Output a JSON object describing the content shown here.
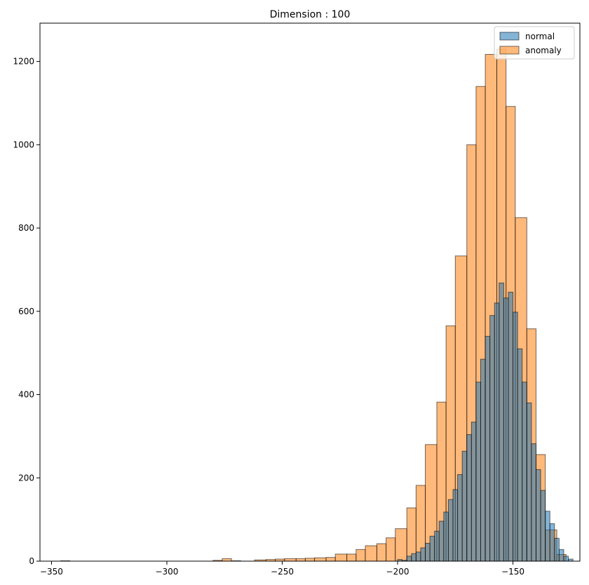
{
  "chart_data": {
    "type": "histogram",
    "title": "Dimension : 100",
    "xlabel": "",
    "ylabel": "",
    "xlim": [
      -355,
      -121
    ],
    "ylim": [
      0,
      1292
    ],
    "xticks": [
      -350,
      -300,
      -250,
      -200,
      -150
    ],
    "yticks": [
      0,
      200,
      400,
      600,
      800,
      1000,
      1200
    ],
    "grid": false,
    "legend": {
      "placement": "top-right"
    },
    "series": [
      {
        "name": "anomaly",
        "color": "#ff7f0e",
        "alpha": 0.55,
        "edge_color": "#000000",
        "bins": [
          {
            "x0": -346,
            "x1": -342,
            "count": 1
          },
          {
            "x0": -280,
            "x1": -276,
            "count": 2
          },
          {
            "x0": -276,
            "x1": -272,
            "count": 6
          },
          {
            "x0": -272,
            "x1": -268,
            "count": 1
          },
          {
            "x0": -262,
            "x1": -257,
            "count": 3
          },
          {
            "x0": -257,
            "x1": -253,
            "count": 4
          },
          {
            "x0": -253,
            "x1": -249,
            "count": 5
          },
          {
            "x0": -249,
            "x1": -244,
            "count": 6
          },
          {
            "x0": -244,
            "x1": -240,
            "count": 6
          },
          {
            "x0": -240,
            "x1": -236,
            "count": 7
          },
          {
            "x0": -236,
            "x1": -231,
            "count": 8
          },
          {
            "x0": -231,
            "x1": -227,
            "count": 9
          },
          {
            "x0": -227,
            "x1": -222,
            "count": 17
          },
          {
            "x0": -222,
            "x1": -218,
            "count": 17
          },
          {
            "x0": -218,
            "x1": -214,
            "count": 28
          },
          {
            "x0": -214,
            "x1": -209,
            "count": 37
          },
          {
            "x0": -209,
            "x1": -205,
            "count": 42
          },
          {
            "x0": -205,
            "x1": -201,
            "count": 56
          },
          {
            "x0": -201,
            "x1": -196,
            "count": 78
          },
          {
            "x0": -196,
            "x1": -192,
            "count": 128
          },
          {
            "x0": -192,
            "x1": -188,
            "count": 182
          },
          {
            "x0": -188,
            "x1": -183,
            "count": 280
          },
          {
            "x0": -183,
            "x1": -179,
            "count": 382
          },
          {
            "x0": -179,
            "x1": -175,
            "count": 565
          },
          {
            "x0": -175,
            "x1": -170,
            "count": 733
          },
          {
            "x0": -170,
            "x1": -166,
            "count": 1000
          },
          {
            "x0": -166,
            "x1": -162,
            "count": 1140
          },
          {
            "x0": -162,
            "x1": -157,
            "count": 1217
          },
          {
            "x0": -157,
            "x1": -153,
            "count": 1230
          },
          {
            "x0": -153,
            "x1": -149,
            "count": 1092
          },
          {
            "x0": -149,
            "x1": -144,
            "count": 825
          },
          {
            "x0": -144,
            "x1": -140,
            "count": 558
          },
          {
            "x0": -140,
            "x1": -136,
            "count": 256
          },
          {
            "x0": -136,
            "x1": -131,
            "count": 75
          },
          {
            "x0": -131,
            "x1": -127,
            "count": 16
          }
        ]
      },
      {
        "name": "normal",
        "color": "#1f77b4",
        "alpha": 0.55,
        "edge_color": "#000000",
        "bins": [
          {
            "x0": -200,
            "x1": -198,
            "count": 4
          },
          {
            "x0": -198,
            "x1": -196,
            "count": 2
          },
          {
            "x0": -196,
            "x1": -194,
            "count": 12
          },
          {
            "x0": -194,
            "x1": -192,
            "count": 18
          },
          {
            "x0": -192,
            "x1": -190,
            "count": 22
          },
          {
            "x0": -190,
            "x1": -188,
            "count": 32
          },
          {
            "x0": -188,
            "x1": -186,
            "count": 43
          },
          {
            "x0": -186,
            "x1": -184,
            "count": 60
          },
          {
            "x0": -184,
            "x1": -182,
            "count": 72
          },
          {
            "x0": -182,
            "x1": -180,
            "count": 96
          },
          {
            "x0": -180,
            "x1": -178,
            "count": 118
          },
          {
            "x0": -178,
            "x1": -176,
            "count": 148
          },
          {
            "x0": -176,
            "x1": -174,
            "count": 172
          },
          {
            "x0": -174,
            "x1": -172,
            "count": 208
          },
          {
            "x0": -172,
            "x1": -170,
            "count": 264
          },
          {
            "x0": -170,
            "x1": -168,
            "count": 304
          },
          {
            "x0": -168,
            "x1": -166,
            "count": 334
          },
          {
            "x0": -166,
            "x1": -164,
            "count": 430
          },
          {
            "x0": -164,
            "x1": -162,
            "count": 485
          },
          {
            "x0": -162,
            "x1": -160,
            "count": 540
          },
          {
            "x0": -160,
            "x1": -158,
            "count": 590
          },
          {
            "x0": -158,
            "x1": -156,
            "count": 620
          },
          {
            "x0": -156,
            "x1": -154,
            "count": 668
          },
          {
            "x0": -154,
            "x1": -152,
            "count": 632
          },
          {
            "x0": -152,
            "x1": -150,
            "count": 646
          },
          {
            "x0": -150,
            "x1": -148,
            "count": 598
          },
          {
            "x0": -148,
            "x1": -146,
            "count": 510
          },
          {
            "x0": -146,
            "x1": -144,
            "count": 430
          },
          {
            "x0": -144,
            "x1": -142,
            "count": 380
          },
          {
            "x0": -142,
            "x1": -140,
            "count": 282
          },
          {
            "x0": -140,
            "x1": -138,
            "count": 220
          },
          {
            "x0": -138,
            "x1": -136,
            "count": 170
          },
          {
            "x0": -136,
            "x1": -134,
            "count": 120
          },
          {
            "x0": -134,
            "x1": -132,
            "count": 90
          },
          {
            "x0": -132,
            "x1": -130,
            "count": 55
          },
          {
            "x0": -130,
            "x1": -128,
            "count": 28
          },
          {
            "x0": -128,
            "x1": -126,
            "count": 12
          },
          {
            "x0": -126,
            "x1": -124,
            "count": 5
          }
        ]
      }
    ]
  }
}
